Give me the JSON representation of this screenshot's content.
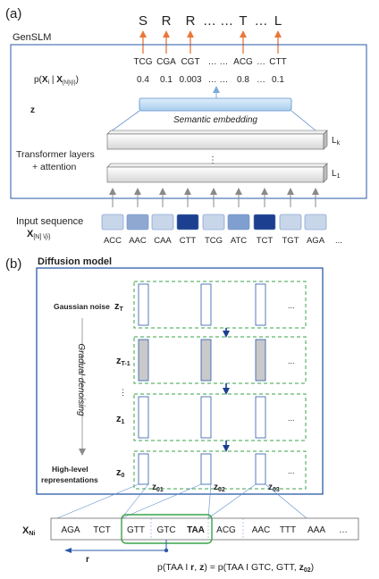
{
  "panel_a": {
    "label": "(a)",
    "model_name": "GenSLM",
    "output_letters": [
      "S",
      "R",
      "R",
      "… …",
      "T",
      "…",
      "L"
    ],
    "codons_top": [
      "TCG",
      "CGA",
      "CGT",
      "… …",
      "ACG",
      "…",
      "CTT"
    ],
    "prob_label_p": "p(",
    "prob_label_x": "X",
    "prob_label_i": "i",
    "prob_label_bar": " | ",
    "prob_label_x2": "X",
    "prob_label_sub": "[N]\\{i}",
    "prob_label_close": ")",
    "probs": [
      "0.4",
      "0.1",
      "0.003",
      "… …",
      "0.8",
      "…",
      "0.1"
    ],
    "z_label": "z",
    "embedding_label": "Semantic embedding",
    "transformer_label_1": "Transformer layers",
    "transformer_label_2": "+ attention",
    "layer_k": "L",
    "layer_k_sub": "k",
    "layer_1": "L",
    "layer_1_sub": "1",
    "ellipsis_v": "⋮",
    "input_label": "Input sequence",
    "input_x": "X",
    "input_sub": "[N] \\{i}",
    "input_codons": [
      "ACC",
      "AAC",
      "CAA",
      "CTT",
      "TCG",
      "ATC",
      "TCT",
      "TGT",
      "AGA"
    ],
    "input_more": "...",
    "input_colors": [
      "#c8d6ea",
      "#8ea8d2",
      "#c8d6ea",
      "#1d3f8f",
      "#c8d6ea",
      "#7f9fd0",
      "#1d3f8f",
      "#c8d6ea",
      "#c8d6ea"
    ]
  },
  "panel_b": {
    "label": "(b)",
    "title": "Diffusion model",
    "gaussian_label": "Gaussian noise",
    "zT": "z",
    "zT_sub": "T",
    "zT1": "z",
    "zT1_sub": "T-1",
    "z1": "z",
    "z1_sub": "1",
    "z0": "z",
    "z0_sub": "0",
    "dots_v": "⋮",
    "gradual": "Gradual denoising",
    "highlevel_1": "High-level",
    "highlevel_2": "representations",
    "row_dots": "...",
    "z01": "z",
    "z01_sub": "01",
    "z02": "z",
    "z02_sub": "02",
    "z03": "z",
    "z03_sub": "03",
    "xni": "X",
    "xni_sub": "Ni",
    "seq": [
      "AGA",
      "TCT",
      "GTT",
      "GTC",
      "TAA",
      "ACG",
      "AAC",
      "TTT",
      "AAA",
      "…"
    ],
    "r_label": "r",
    "formula_a": "p(TAA I ",
    "formula_r": "r",
    "formula_b": ", ",
    "formula_z": "z",
    "formula_c": ") = p(TAA I GTC, GTT, ",
    "formula_z02": "z",
    "formula_z02_sub": "02",
    "formula_d": ")"
  }
}
